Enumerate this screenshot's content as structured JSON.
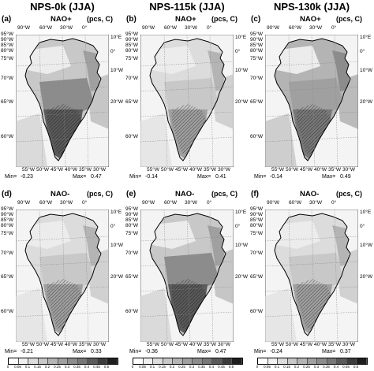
{
  "columns": [
    {
      "title": "NPS-0k (JJA)"
    },
    {
      "title": "NPS-115k (JJA)"
    },
    {
      "title": "NPS-130k (JJA)"
    }
  ],
  "panels": [
    {
      "label": "(a)",
      "phase": "NAO+",
      "units": "(pcs, C)",
      "min_label": "Min=",
      "min": "-0.23",
      "max_label": "Max=",
      "max": "0.47",
      "intensity": "high"
    },
    {
      "label": "(b)",
      "phase": "NAO+",
      "units": "(pcs, C)",
      "min_label": "Min=",
      "min": "-0.14",
      "max_label": "Max=",
      "max": "0.41",
      "intensity": "low"
    },
    {
      "label": "(c)",
      "phase": "NAO+",
      "units": "(pcs, C)",
      "min_label": "Min=",
      "min": "-0.14",
      "max_label": "Max=",
      "max": "0.49",
      "intensity": "med"
    },
    {
      "label": "(d)",
      "phase": "NAO-",
      "units": "(pcs, C)",
      "min_label": "Min=",
      "min": "-0.21",
      "max_label": "Max=",
      "max": "0.33",
      "intensity": "low"
    },
    {
      "label": "(e)",
      "phase": "NAO-",
      "units": "(pcs, C)",
      "min_label": "Min=",
      "min": "-0.36",
      "max_label": "Max=",
      "max": "0.47",
      "intensity": "high"
    },
    {
      "label": "(f)",
      "phase": "NAO-",
      "units": "(pcs, C)",
      "min_label": "Min=",
      "min": "-0.24",
      "max_label": "Max=",
      "max": "0.37",
      "intensity": "low"
    }
  ],
  "lat_labels": [
    "95°W",
    "90°W",
    "85°W",
    "80°W",
    "75°W",
    "70°W",
    "65°W",
    "60°W"
  ],
  "lon_top": [
    "90°W",
    "60°W",
    "30°W",
    "0°"
  ],
  "lon_right": [
    "10°E",
    "0°",
    "10°W",
    "20°W"
  ],
  "lon_bottom": [
    "55°W",
    "50°W",
    "45°W",
    "40°W",
    "35°W",
    "30°W"
  ],
  "colorbar": {
    "ticks": [
      "0",
      "0.05",
      "0.1",
      "0.15",
      "0.2",
      "0.25",
      "0.3",
      "0.35",
      "0.4",
      "0.45",
      "0.5"
    ],
    "colors": [
      "#ffffff",
      "#f0f0f0",
      "#dcdcdc",
      "#c8c8c8",
      "#b4b4b4",
      "#a0a0a0",
      "#8c8c8c",
      "#787878",
      "#5a5a5a",
      "#3c3c3c",
      "#1e1e1e"
    ]
  }
}
